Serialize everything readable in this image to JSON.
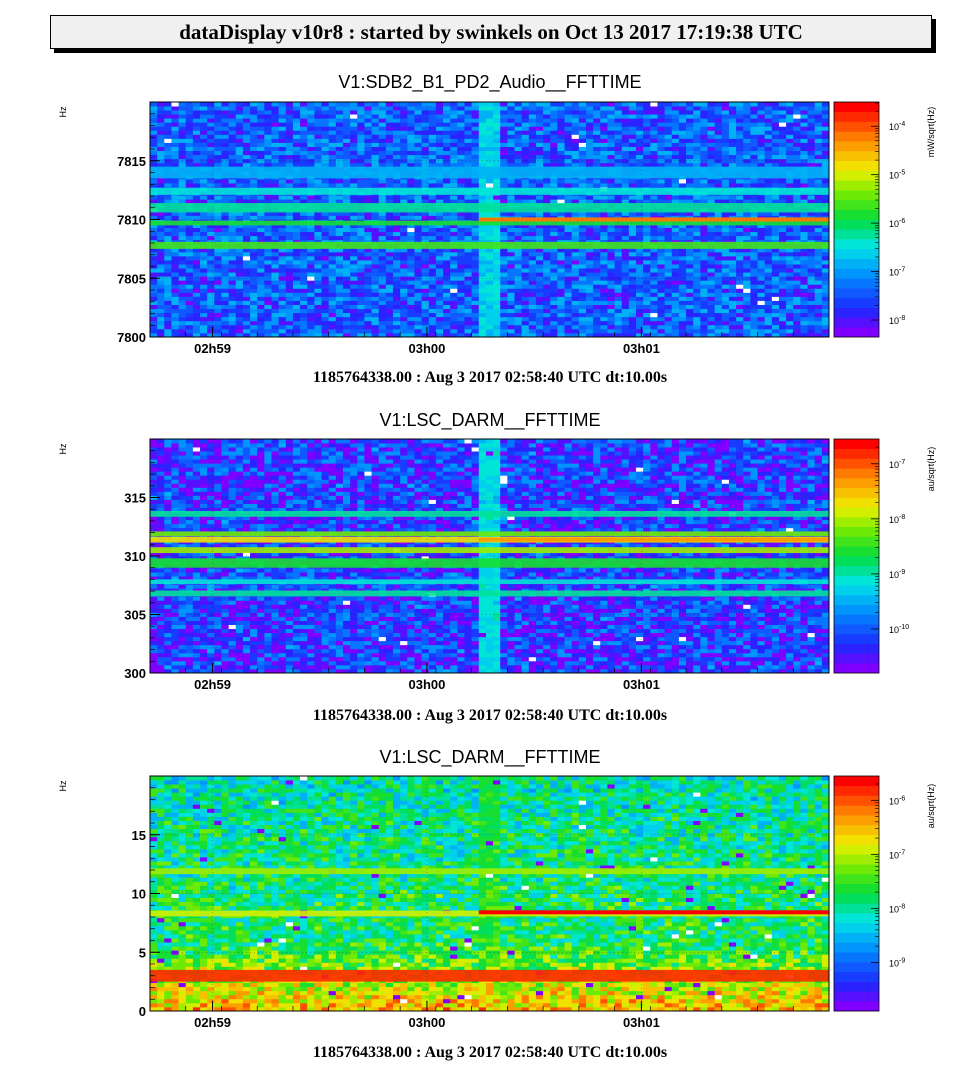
{
  "header": {
    "title": "dataDisplay v10r8 : started by swinkels on Oct 13 2017 17:19:38 UTC"
  },
  "chart_data": [
    {
      "type": "heatmap",
      "title": "V1:SDB2_B1_PD2_Audio__FFTTIME",
      "ylabel": "Hz",
      "colorbar_label": "mW/sqrt(Hz)",
      "footer": "1185764338.00 : Aug  3 2017 02:58:40 UTC dt:10.00s",
      "ylim": [
        7800,
        7820
      ],
      "yticks": [
        {
          "value": 7800,
          "label": "7800"
        },
        {
          "value": 7805,
          "label": "7805"
        },
        {
          "value": 7810,
          "label": "7810"
        },
        {
          "value": 7815,
          "label": "7815"
        }
      ],
      "xlim": [
        0,
        190
      ],
      "xticks": [
        {
          "value": 17.5,
          "label": "02h59"
        },
        {
          "value": 77.5,
          "label": "03h00"
        },
        {
          "value": 137.5,
          "label": "03h01"
        }
      ],
      "colorbar": {
        "log_range": [
          -8.35,
          -3.5
        ],
        "ticks": [
          {
            "exp": -8,
            "label": "10",
            "sup": "-8"
          },
          {
            "exp": -7,
            "label": "10",
            "sup": "-7"
          },
          {
            "exp": -6,
            "label": "10",
            "sup": "-6"
          },
          {
            "exp": -5,
            "label": "10",
            "sup": "-5"
          },
          {
            "exp": -4,
            "label": "10",
            "sup": "-4"
          }
        ]
      },
      "background_log_level": -7.4,
      "lines": [
        {
          "y": 7807.8,
          "level": -5.6,
          "width": 0.6
        },
        {
          "y": 7809.7,
          "level": -5.8,
          "width": 0.4
        },
        {
          "y": 7811.0,
          "level": -6.3,
          "width": 0.8
        },
        {
          "y": 7812.4,
          "level": -6.5,
          "width": 0.6
        },
        {
          "y": 7814.0,
          "level": -6.9,
          "width": 1.0
        }
      ],
      "glitch": {
        "x": [
          92,
          97
        ],
        "level": -6.6
      },
      "step_line": {
        "y": 7810.0,
        "x_start": 92,
        "level": -4.3
      }
    },
    {
      "type": "heatmap",
      "title": "V1:LSC_DARM__FFTTIME",
      "ylabel": "Hz",
      "colorbar_label": "au/sqrt(Hz)",
      "footer": "1185764338.00 : Aug  3 2017 02:58:40 UTC dt:10.00s",
      "ylim": [
        300,
        320
      ],
      "yticks": [
        {
          "value": 300,
          "label": "300"
        },
        {
          "value": 305,
          "label": "305"
        },
        {
          "value": 310,
          "label": "310"
        },
        {
          "value": 315,
          "label": "315"
        }
      ],
      "xlim": [
        0,
        190
      ],
      "xticks": [
        {
          "value": 17.5,
          "label": "02h59"
        },
        {
          "value": 77.5,
          "label": "03h00"
        },
        {
          "value": 137.5,
          "label": "03h01"
        }
      ],
      "colorbar": {
        "log_range": [
          -10.8,
          -6.55
        ],
        "ticks": [
          {
            "exp": -10,
            "label": "10",
            "sup": "-10"
          },
          {
            "exp": -9,
            "label": "10",
            "sup": "-9"
          },
          {
            "exp": -8,
            "label": "10",
            "sup": "-8"
          },
          {
            "exp": -7,
            "label": "10",
            "sup": "-7"
          }
        ]
      },
      "background_log_level": -10.2,
      "lines": [
        {
          "y": 306.8,
          "level": -8.9,
          "width": 0.5
        },
        {
          "y": 307.8,
          "level": -9.1,
          "width": 0.4
        },
        {
          "y": 309.4,
          "level": -8.6,
          "width": 0.8
        },
        {
          "y": 310.5,
          "level": -8.1,
          "width": 0.5
        },
        {
          "y": 311.4,
          "level": -7.7,
          "width": 0.5
        },
        {
          "y": 311.9,
          "level": -8.2,
          "width": 0.4
        },
        {
          "y": 313.6,
          "level": -9.0,
          "width": 0.5
        }
      ],
      "glitch": {
        "x": [
          92,
          97
        ],
        "level": -9.2
      },
      "step_line": {
        "y": 311.4,
        "x_start": 92,
        "level": -7.3
      }
    },
    {
      "type": "heatmap",
      "title": "V1:LSC_DARM__FFTTIME",
      "ylabel": "Hz",
      "colorbar_label": "au/sqrt(Hz)",
      "footer": "1185764338.00 : Aug  3 2017 02:58:40 UTC dt:10.00s",
      "ylim": [
        0,
        20
      ],
      "yticks": [
        {
          "value": 0,
          "label": "0"
        },
        {
          "value": 5,
          "label": "5"
        },
        {
          "value": 10,
          "label": "10"
        },
        {
          "value": 15,
          "label": "15"
        }
      ],
      "xlim": [
        0,
        190
      ],
      "xticks": [
        {
          "value": 17.5,
          "label": "02h59"
        },
        {
          "value": 77.5,
          "label": "03h00"
        },
        {
          "value": 137.5,
          "label": "03h01"
        }
      ],
      "colorbar": {
        "log_range": [
          -9.9,
          -5.55
        ],
        "ticks": [
          {
            "exp": -9,
            "label": "10",
            "sup": "-9"
          },
          {
            "exp": -8,
            "label": "10",
            "sup": "-8"
          },
          {
            "exp": -7,
            "label": "10",
            "sup": "-7"
          },
          {
            "exp": -6,
            "label": "10",
            "sup": "-6"
          }
        ]
      },
      "background_log_level": -7.8,
      "lines": [
        {
          "y": 3.0,
          "level": -5.9,
          "width": 1.0
        },
        {
          "y": 8.3,
          "level": -7.0,
          "width": 0.5
        },
        {
          "y": 11.9,
          "level": -7.1,
          "width": 0.5
        }
      ],
      "glitch": {
        "x": [
          92,
          97
        ],
        "level": -7.7
      },
      "step_line": {
        "y": 8.4,
        "x_start": 92,
        "level": -5.7
      }
    }
  ]
}
